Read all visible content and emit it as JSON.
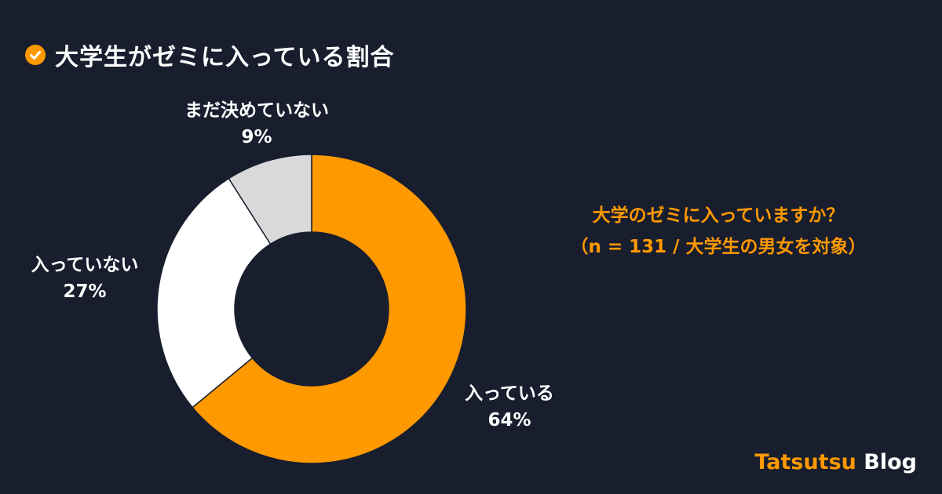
{
  "header": {
    "title": "大学生がゼミに入っている割合",
    "icon": "check-circle-icon"
  },
  "question": {
    "line1": "大学のゼミに入っていますか？",
    "line2": "（n = 131 / 大学生の男女を対象）"
  },
  "brand": {
    "part1": "Tatsutsu",
    "part2": "Blog"
  },
  "colors": {
    "background": "#181e2e",
    "accent": "#ff9900",
    "white": "#ffffff",
    "gray": "#d9d9d9"
  },
  "chart_data": {
    "type": "pie",
    "donut": true,
    "categories": [
      "入っている",
      "入っていない",
      "まだ決めていない"
    ],
    "values": [
      64,
      27,
      9
    ],
    "labels": [
      "64%",
      "27%",
      "9%"
    ],
    "colors": [
      "#ff9900",
      "#ffffff",
      "#d9d9d9"
    ],
    "legend": "none"
  }
}
